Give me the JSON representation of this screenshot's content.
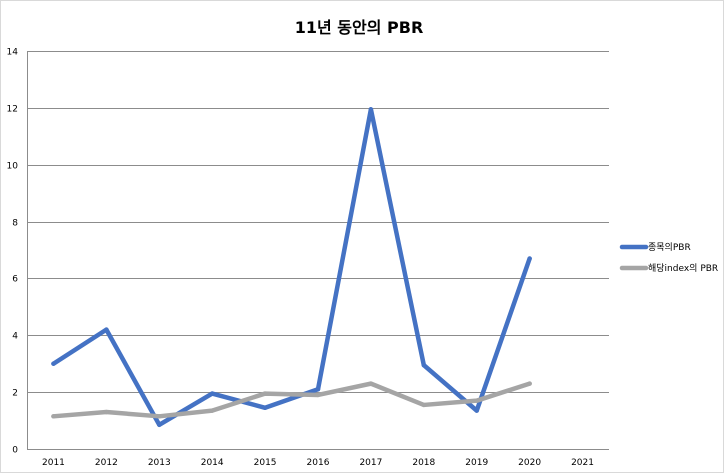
{
  "chart_data": {
    "type": "line",
    "title": "11년 동안의 PBR",
    "xlabel": "",
    "ylabel": "",
    "categories": [
      "2011",
      "2012",
      "2013",
      "2014",
      "2015",
      "2016",
      "2017",
      "2018",
      "2019",
      "2020",
      "2021"
    ],
    "ylim": [
      0,
      14
    ],
    "yticks": [
      0,
      2,
      4,
      6,
      8,
      10,
      12,
      14
    ],
    "grid": true,
    "legend_position": "right",
    "series": [
      {
        "name": "종목의PBR",
        "color": "#4472c4",
        "values": [
          3.0,
          4.2,
          0.85,
          1.95,
          1.45,
          2.1,
          11.95,
          2.95,
          1.35,
          6.7,
          null
        ]
      },
      {
        "name": "해당index의 PBR",
        "color": "#a5a5a5",
        "values": [
          1.15,
          1.3,
          1.15,
          1.35,
          1.95,
          1.9,
          2.3,
          1.55,
          1.7,
          2.3,
          null
        ]
      }
    ]
  }
}
